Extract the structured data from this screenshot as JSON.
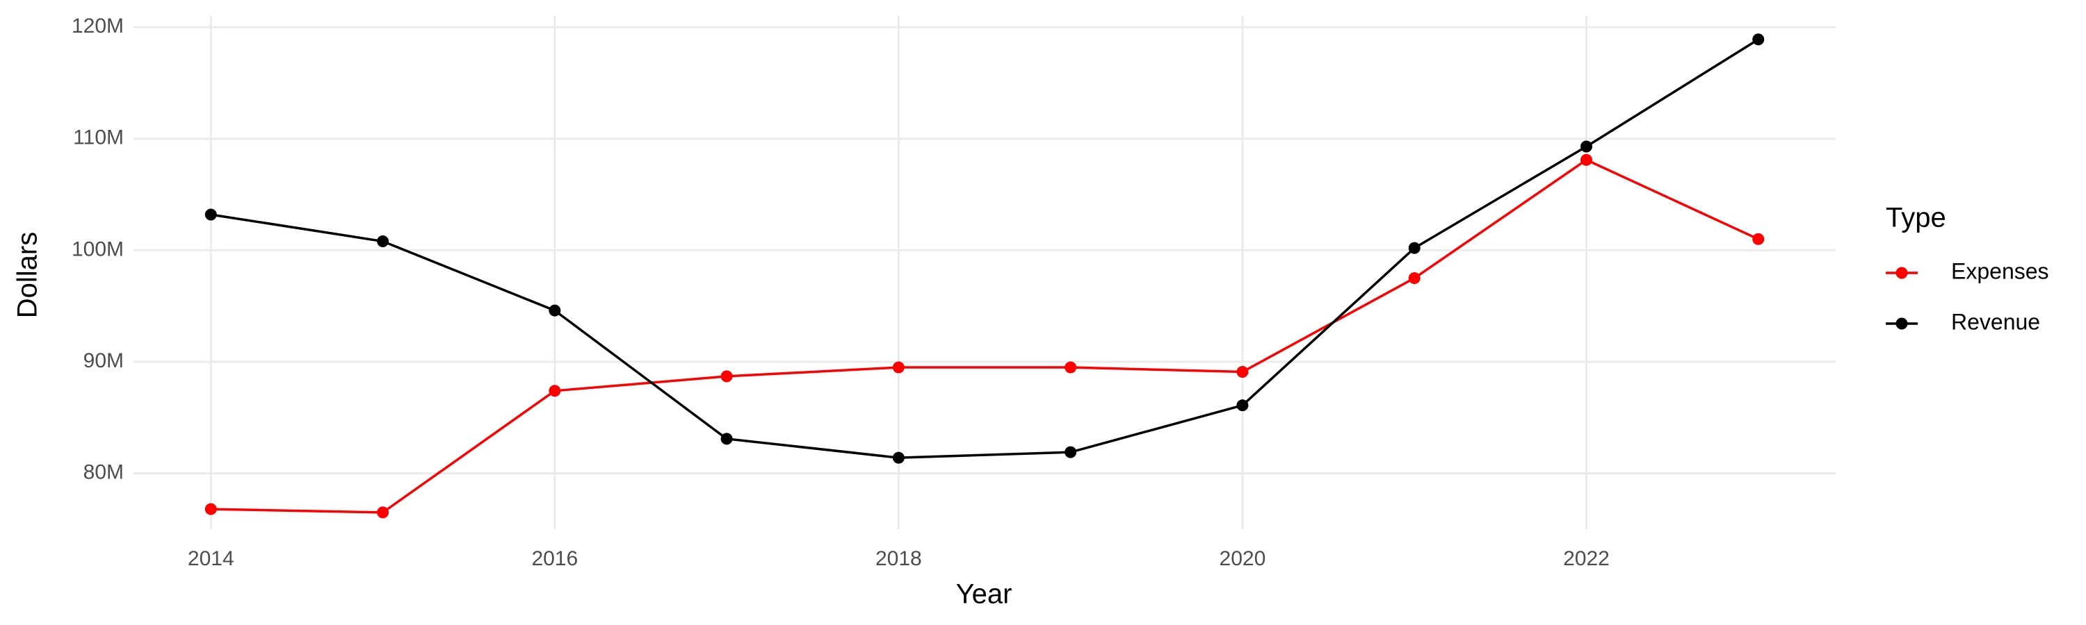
{
  "chart_data": {
    "type": "line",
    "x_label": "Year",
    "y_label": "Dollars",
    "x": [
      2014,
      2015,
      2016,
      2017,
      2018,
      2019,
      2020,
      2021,
      2022,
      2023
    ],
    "series": [
      {
        "name": "Expenses",
        "color": "#ff0000",
        "values": [
          76800000,
          76500000,
          87400000,
          88700000,
          89500000,
          89500000,
          89100000,
          97500000,
          108100000,
          101000000
        ]
      },
      {
        "name": "Revenue",
        "color": "#000000",
        "values": [
          103200000,
          100800000,
          94600000,
          83100000,
          81400000,
          81900000,
          86100000,
          100200000,
          109300000,
          118900000
        ]
      }
    ],
    "xlim": [
      2013.55,
      2023.45
    ],
    "xticks": [
      2014,
      2016,
      2018,
      2020,
      2022
    ],
    "ylim": [
      75000000,
      121000000
    ],
    "yticks": [
      {
        "value": 80000000,
        "label": "80M"
      },
      {
        "value": 90000000,
        "label": "90M"
      },
      {
        "value": 100000000,
        "label": "100M"
      },
      {
        "value": 110000000,
        "label": "110M"
      },
      {
        "value": 120000000,
        "label": "120M"
      }
    ],
    "grid": true,
    "legend_title": "Type",
    "legend_position": "right"
  }
}
